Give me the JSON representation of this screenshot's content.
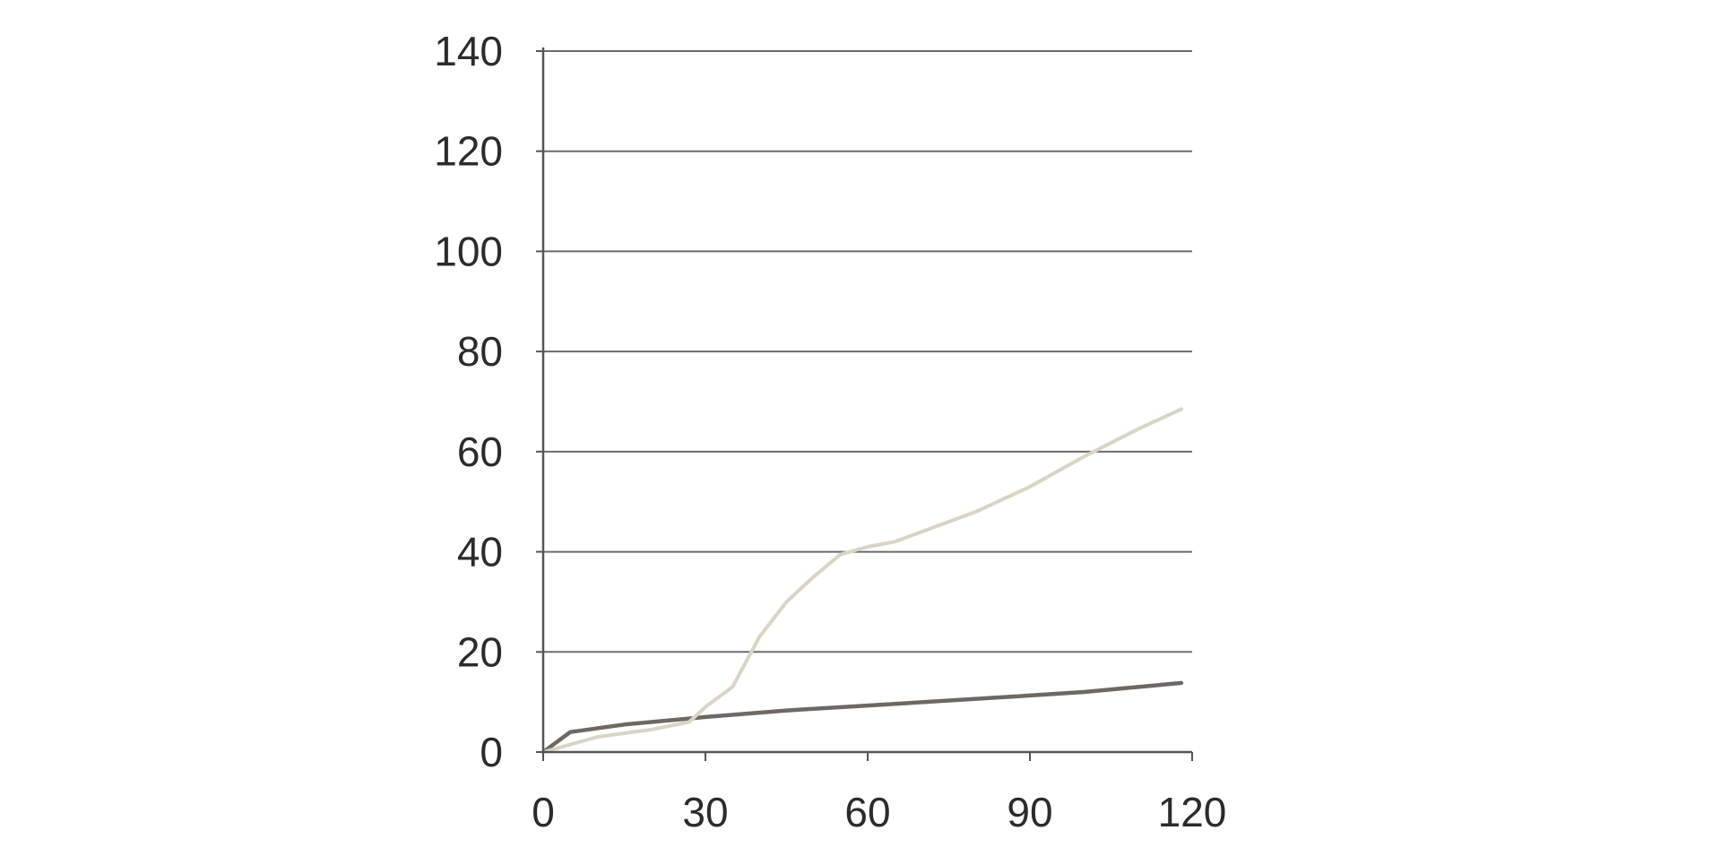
{
  "chart_data": {
    "type": "line",
    "title": "",
    "xlabel": "",
    "ylabel": "",
    "xlim": [
      0,
      120
    ],
    "ylim": [
      0,
      140
    ],
    "x_ticks": [
      0,
      30,
      60,
      90,
      120
    ],
    "y_ticks": [
      0,
      20,
      40,
      60,
      80,
      100,
      120,
      140
    ],
    "grid": "horizontal",
    "legend": "none",
    "series": [
      {
        "color": "#6f6862",
        "x": [
          0,
          5,
          15,
          30,
          45,
          60,
          75,
          90,
          100,
          110,
          118
        ],
        "y": [
          0,
          4,
          5.5,
          7,
          8.3,
          9.3,
          10.3,
          11.3,
          12,
          13,
          13.8
        ]
      },
      {
        "color": "#d8d4c6",
        "x": [
          0,
          10,
          20,
          27,
          30,
          35,
          40,
          45,
          50,
          55,
          60,
          65,
          70,
          80,
          90,
          100,
          110,
          118
        ],
        "y": [
          0,
          3,
          4.5,
          6,
          9,
          13,
          23,
          30,
          35,
          39.5,
          41,
          42,
          44,
          48,
          53,
          59,
          64.5,
          68.5
        ]
      }
    ]
  }
}
